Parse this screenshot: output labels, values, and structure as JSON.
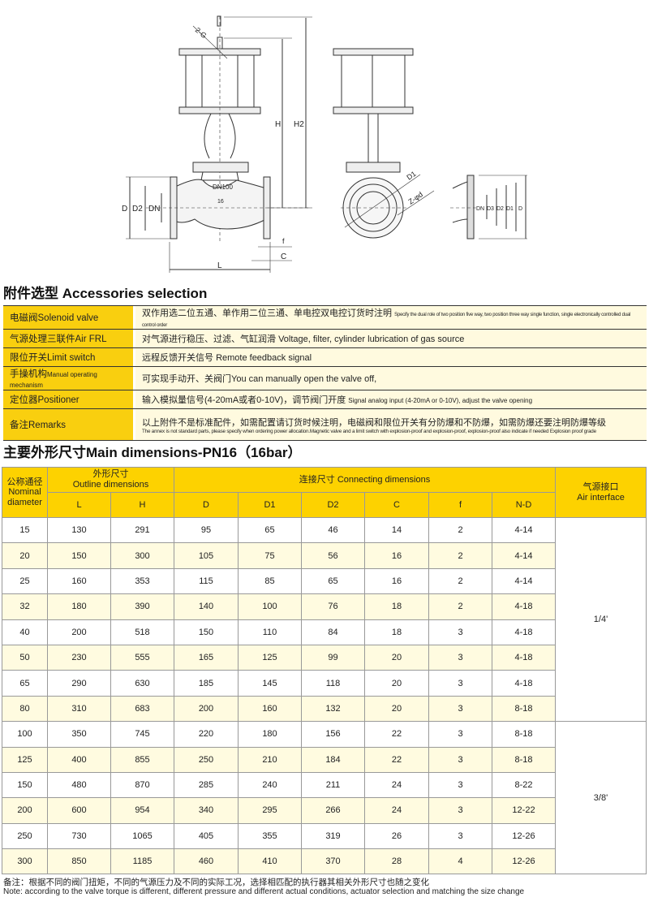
{
  "drawing": {
    "labels": {
      "g": "2-G",
      "h": "H",
      "h2": "H2",
      "dn100": "DN100",
      "pn": "16",
      "d": "D",
      "d2": "D2",
      "dn": "DN",
      "l": "L",
      "f": "f",
      "c": "C",
      "d1": "D1",
      "zd": "Z-φd",
      "flange_labels": [
        "DN",
        "D3",
        "D2",
        "D1",
        "D"
      ]
    }
  },
  "accessories": {
    "title": "附件选型 Accessories selection",
    "rows": [
      {
        "label": "电磁阀Solenoid valve",
        "cn": "双作用选二位五通、单作用二位三通、单电控双电控订货时注明",
        "en": "Specify the dual role of two position five way, two position three way single function, single electronically controlled dual control order"
      },
      {
        "label": "气源处理三联件Air FRL",
        "cn": "对气源进行稳压、过滤、气缸润滑",
        "en": "Voltage, filter, cylinder lubrication of gas source"
      },
      {
        "label": "限位开关Limit switch",
        "cn": "远程反馈开关信号",
        "en": "Remote feedback signal"
      },
      {
        "label": "手操机构",
        "label_en": "Manual operating mechanism",
        "cn": "可实现手动开、关阀门",
        "en": "You can manually open the valve off,"
      },
      {
        "label": "定位器Positioner",
        "cn": "输入模拟量信号(4-20mA或者0-10V)，调节阀门开度",
        "en": "Signal analog input (4-20mA or 0-10V), adjust the valve opening"
      },
      {
        "label": "备注Remarks",
        "cn": "以上附件不是标准配件，如需配置请订货时候注明，电磁阀和限位开关有分防爆和不防爆，如需防爆还要注明防爆等级",
        "en": "The annex is not standard parts, please specify when ordering power allocation.Magnetic valve and a limit switch with explosion-proof and explosion-proof, explosion-proof also indicate if needed Explosion proof grade"
      }
    ]
  },
  "dimensions": {
    "title": "主要外形尺寸Main dimensions-PN16（16bar）",
    "headers": {
      "nominal": [
        "公称通径",
        "Nominal",
        "diameter"
      ],
      "outline": [
        "外形尺寸",
        "Outline dimensions"
      ],
      "connecting": "连接尺寸 Connecting dimensions",
      "air": [
        "气源接口",
        "Air interface"
      ],
      "cols": [
        "L",
        "H",
        "D",
        "D1",
        "D2",
        "C",
        "f",
        "N-D"
      ]
    },
    "rows": [
      [
        "15",
        "130",
        "291",
        "95",
        "65",
        "46",
        "14",
        "2",
        "4-14"
      ],
      [
        "20",
        "150",
        "300",
        "105",
        "75",
        "56",
        "16",
        "2",
        "4-14"
      ],
      [
        "25",
        "160",
        "353",
        "115",
        "85",
        "65",
        "16",
        "2",
        "4-14"
      ],
      [
        "32",
        "180",
        "390",
        "140",
        "100",
        "76",
        "18",
        "2",
        "4-18"
      ],
      [
        "40",
        "200",
        "518",
        "150",
        "110",
        "84",
        "18",
        "3",
        "4-18"
      ],
      [
        "50",
        "230",
        "555",
        "165",
        "125",
        "99",
        "20",
        "3",
        "4-18"
      ],
      [
        "65",
        "290",
        "630",
        "185",
        "145",
        "118",
        "20",
        "3",
        "4-18"
      ],
      [
        "80",
        "310",
        "683",
        "200",
        "160",
        "132",
        "20",
        "3",
        "8-18"
      ],
      [
        "100",
        "350",
        "745",
        "220",
        "180",
        "156",
        "22",
        "3",
        "8-18"
      ],
      [
        "125",
        "400",
        "855",
        "250",
        "210",
        "184",
        "22",
        "3",
        "8-18"
      ],
      [
        "150",
        "480",
        "870",
        "285",
        "240",
        "211",
        "24",
        "3",
        "8-22"
      ],
      [
        "200",
        "600",
        "954",
        "340",
        "295",
        "266",
        "24",
        "3",
        "12-22"
      ],
      [
        "250",
        "730",
        "1065",
        "405",
        "355",
        "319",
        "26",
        "3",
        "12-26"
      ],
      [
        "300",
        "850",
        "1185",
        "460",
        "410",
        "370",
        "28",
        "4",
        "12-26"
      ]
    ],
    "air_interface": [
      "1/4'",
      "3/8'"
    ]
  },
  "note": {
    "cn": "备注：根据不同的阀门扭矩，不同的气源压力及不同的实际工况，选择相匹配的执行器其相关外形尺寸也随之变化",
    "en": "Note: according to the valve torque is different, different pressure and different actual conditions, actuator selection and matching the size change"
  },
  "colors": {
    "header_yellow": "#fdd200",
    "row_alt": "#fffbe0",
    "label_yellow": "#f9cf0f"
  }
}
